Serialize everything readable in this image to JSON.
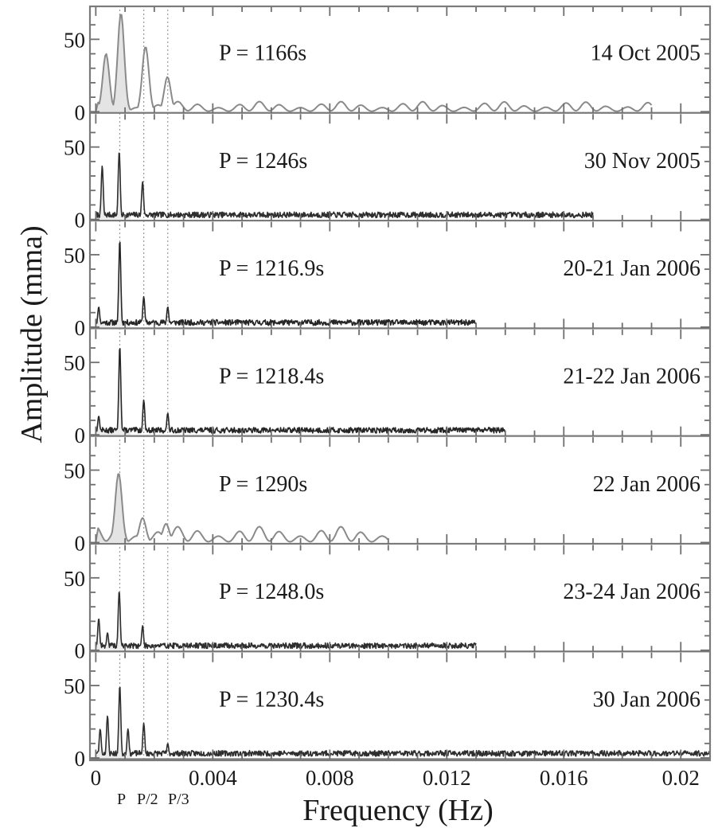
{
  "chart_data": {
    "type": "line",
    "xlabel": "Frequency (Hz)",
    "ylabel": "Amplitude (mma)",
    "xlim": [
      -0.0002,
      0.021
    ],
    "ylim": [
      0,
      70
    ],
    "x_ticks": [
      {
        "value": 0,
        "label": "0"
      },
      {
        "value": 0.004,
        "label": "0.004"
      },
      {
        "value": 0.008,
        "label": "0.008"
      },
      {
        "value": 0.012,
        "label": "0.012"
      },
      {
        "value": 0.016,
        "label": "0.016"
      },
      {
        "value": 0.02,
        "label": "0.02"
      }
    ],
    "y_ticks": [
      {
        "value": 0,
        "label": "0"
      },
      {
        "value": 50,
        "label": "50"
      }
    ],
    "frequency_markers": [
      {
        "value": 0.00082,
        "label": "P"
      },
      {
        "value": 0.00164,
        "label": "P/2"
      },
      {
        "value": 0.00246,
        "label": "P/3"
      }
    ],
    "panels": [
      {
        "date": "14 Oct 2005",
        "period_label": "P = 1166s",
        "style": "smooth",
        "line_color": "#8a8a8a",
        "fill_color": "#e4e4e4",
        "fmax": 0.019,
        "noise": 7,
        "noise_seed": 3,
        "peaks": [
          {
            "f": 0.00035,
            "amp": 40
          },
          {
            "f": 0.00086,
            "amp": 68
          },
          {
            "f": 0.0017,
            "amp": 45
          },
          {
            "f": 0.00245,
            "amp": 24
          }
        ]
      },
      {
        "date": "30 Nov 2005",
        "period_label": "P = 1246s",
        "style": "noisy",
        "line_color": "#2e2e2e",
        "fill_color": "#ececec",
        "fmax": 0.017,
        "noise": 3,
        "noise_seed": 7,
        "peaks": [
          {
            "f": 0.00022,
            "amp": 37
          },
          {
            "f": 0.0008,
            "amp": 47
          },
          {
            "f": 0.0016,
            "amp": 26
          }
        ]
      },
      {
        "date": "20-21 Jan 2006",
        "period_label": "P = 1216.9s",
        "style": "noisy",
        "line_color": "#262626",
        "fill_color": "#ececec",
        "fmax": 0.013,
        "noise": 3,
        "noise_seed": 11,
        "peaks": [
          {
            "f": 0.0001,
            "amp": 14
          },
          {
            "f": 0.00082,
            "amp": 60
          },
          {
            "f": 0.00164,
            "amp": 21
          },
          {
            "f": 0.00246,
            "amp": 14
          }
        ]
      },
      {
        "date": "21-22 Jan 2006",
        "period_label": "P = 1218.4s",
        "style": "noisy",
        "line_color": "#262626",
        "fill_color": "#ececec",
        "fmax": 0.014,
        "noise": 3,
        "noise_seed": 13,
        "peaks": [
          {
            "f": 0.0001,
            "amp": 13
          },
          {
            "f": 0.00082,
            "amp": 61
          },
          {
            "f": 0.00164,
            "amp": 24
          },
          {
            "f": 0.00246,
            "amp": 15
          }
        ]
      },
      {
        "date": "22 Jan 2006",
        "period_label": "P = 1290s",
        "style": "smooth",
        "line_color": "#8a8a8a",
        "fill_color": "#e4e4e4",
        "fmax": 0.01,
        "noise": 11,
        "noise_seed": 17,
        "peaks": [
          {
            "f": 0.00078,
            "amp": 48
          },
          {
            "f": 0.0016,
            "amp": 17
          },
          {
            "f": 0.0024,
            "amp": 13
          }
        ]
      },
      {
        "date": "23-24 Jan 2006",
        "period_label": "P = 1248.0s",
        "style": "noisy",
        "line_color": "#2e2e2e",
        "fill_color": "#ececec",
        "fmax": 0.013,
        "noise": 3,
        "noise_seed": 19,
        "peaks": [
          {
            "f": 0.0001,
            "amp": 22
          },
          {
            "f": 0.0004,
            "amp": 12
          },
          {
            "f": 0.0008,
            "amp": 41
          },
          {
            "f": 0.0016,
            "amp": 17
          }
        ]
      },
      {
        "date": "30 Jan 2006",
        "period_label": "P = 1230.4s",
        "style": "noisy",
        "line_color": "#2e2e2e",
        "fill_color": "#ececec",
        "fmax": 0.021,
        "noise": 3,
        "noise_seed": 23,
        "peaks": [
          {
            "f": 0.00015,
            "amp": 20
          },
          {
            "f": 0.0004,
            "amp": 29
          },
          {
            "f": 0.00082,
            "amp": 50
          },
          {
            "f": 0.0011,
            "amp": 20
          },
          {
            "f": 0.00164,
            "amp": 24
          },
          {
            "f": 0.00246,
            "amp": 10
          }
        ]
      }
    ]
  }
}
